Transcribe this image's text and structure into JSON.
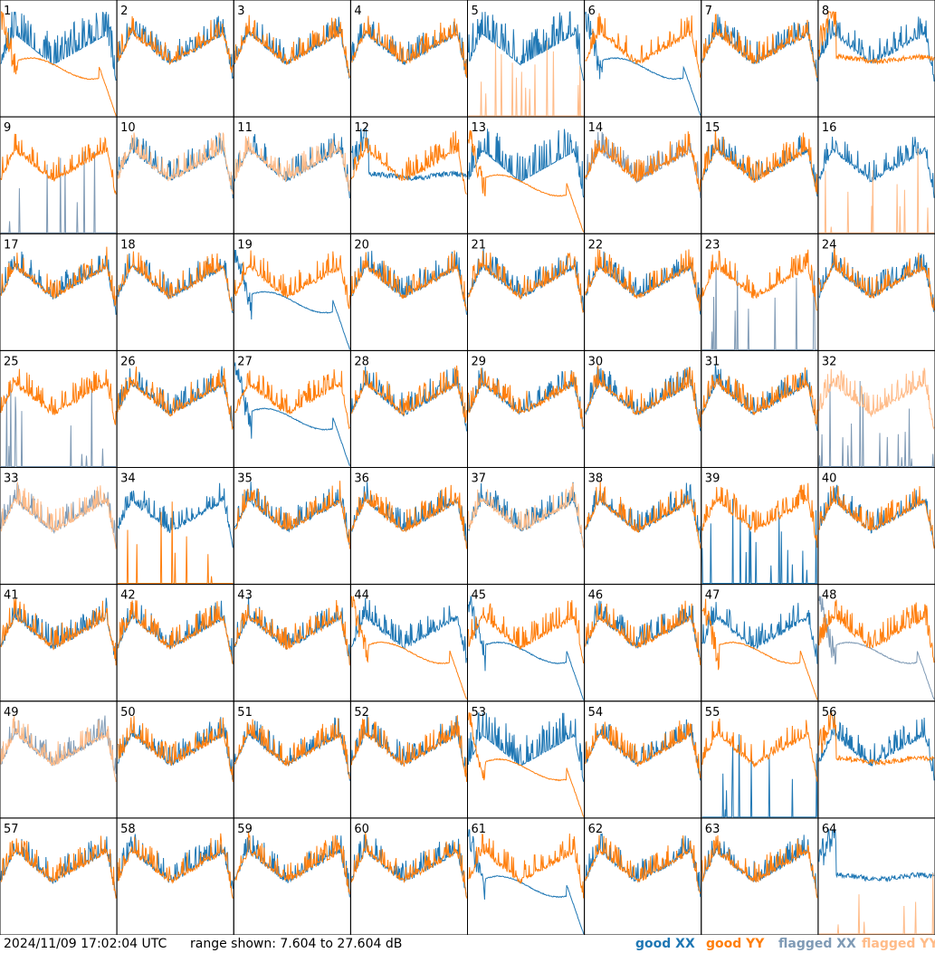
{
  "footer": {
    "timestamp": "2024/11/09 17:02:04 UTC",
    "range": "range shown: 7.604 to 27.604 dB",
    "legend": [
      "good XX",
      "good YY",
      "flagged XX",
      "flagged YY"
    ]
  },
  "colors": {
    "good_xx": "#1f77b4",
    "good_yy": "#ff7f0e",
    "flagged_xx": "#7f9ab5",
    "flagged_yy": "#ffbb88",
    "grid": "#000000"
  },
  "chart_data": {
    "type": "line",
    "layout": "8x8 small multiples",
    "ylim": [
      7.604,
      27.604
    ],
    "ylabel_unit": "dB",
    "series_names": [
      "good XX",
      "good YY",
      "flagged XX",
      "flagged YY"
    ],
    "tiles": [
      {
        "id": "1",
        "xx": "good",
        "yy": "good",
        "xx_shape": "spiky",
        "yy_shape": "dropout"
      },
      {
        "id": "2",
        "xx": "good",
        "yy": "good",
        "xx_shape": "normal",
        "yy_shape": "normal"
      },
      {
        "id": "3",
        "xx": "good",
        "yy": "good",
        "xx_shape": "normal",
        "yy_shape": "normal"
      },
      {
        "id": "4",
        "xx": "good",
        "yy": "good",
        "xx_shape": "normal",
        "yy_shape": "normal"
      },
      {
        "id": "5",
        "xx": "good",
        "yy": "flagged",
        "xx_shape": "spiky",
        "yy_shape": "spikes"
      },
      {
        "id": "6",
        "xx": "good",
        "yy": "good",
        "xx_shape": "dropout",
        "yy_shape": "normal"
      },
      {
        "id": "7",
        "xx": "good",
        "yy": "good",
        "xx_shape": "normal",
        "yy_shape": "normal"
      },
      {
        "id": "8",
        "xx": "good",
        "yy": "good",
        "xx_shape": "normal",
        "yy_shape": "flat"
      },
      {
        "id": "9",
        "xx": "flagged",
        "yy": "good",
        "xx_shape": "spikes",
        "yy_shape": "normal"
      },
      {
        "id": "10",
        "xx": "good",
        "yy": "flagged",
        "xx_shape": "normal",
        "yy_shape": "normal"
      },
      {
        "id": "11",
        "xx": "good",
        "yy": "flagged",
        "xx_shape": "normal",
        "yy_shape": "normal"
      },
      {
        "id": "12",
        "xx": "good",
        "yy": "good",
        "xx_shape": "flat",
        "yy_shape": "normal"
      },
      {
        "id": "13",
        "xx": "good",
        "yy": "good",
        "xx_shape": "spiky",
        "yy_shape": "dropout"
      },
      {
        "id": "14",
        "xx": "flagged",
        "yy": "good",
        "xx_shape": "normal",
        "yy_shape": "normal"
      },
      {
        "id": "15",
        "xx": "good",
        "yy": "good",
        "xx_shape": "normal",
        "yy_shape": "normal"
      },
      {
        "id": "16",
        "xx": "good",
        "yy": "flagged",
        "xx_shape": "normal",
        "yy_shape": "spikes"
      },
      {
        "id": "17",
        "xx": "good",
        "yy": "good",
        "xx_shape": "normal",
        "yy_shape": "normal"
      },
      {
        "id": "18",
        "xx": "good",
        "yy": "good",
        "xx_shape": "normal",
        "yy_shape": "normal"
      },
      {
        "id": "19",
        "xx": "good",
        "yy": "good",
        "xx_shape": "dropout",
        "yy_shape": "normal"
      },
      {
        "id": "20",
        "xx": "good",
        "yy": "good",
        "xx_shape": "normal",
        "yy_shape": "normal"
      },
      {
        "id": "21",
        "xx": "good",
        "yy": "good",
        "xx_shape": "normal",
        "yy_shape": "normal"
      },
      {
        "id": "22",
        "xx": "good",
        "yy": "good",
        "xx_shape": "normal",
        "yy_shape": "normal"
      },
      {
        "id": "23",
        "xx": "flagged",
        "yy": "good",
        "xx_shape": "spikes",
        "yy_shape": "normal"
      },
      {
        "id": "24",
        "xx": "good",
        "yy": "good",
        "xx_shape": "normal",
        "yy_shape": "normal"
      },
      {
        "id": "25",
        "xx": "flagged",
        "yy": "good",
        "xx_shape": "spikes",
        "yy_shape": "normal"
      },
      {
        "id": "26",
        "xx": "good",
        "yy": "good",
        "xx_shape": "normal",
        "yy_shape": "normal"
      },
      {
        "id": "27",
        "xx": "good",
        "yy": "good",
        "xx_shape": "dropout",
        "yy_shape": "normal"
      },
      {
        "id": "28",
        "xx": "good",
        "yy": "good",
        "xx_shape": "normal",
        "yy_shape": "normal"
      },
      {
        "id": "29",
        "xx": "good",
        "yy": "good",
        "xx_shape": "normal",
        "yy_shape": "normal"
      },
      {
        "id": "30",
        "xx": "good",
        "yy": "good",
        "xx_shape": "normal",
        "yy_shape": "normal"
      },
      {
        "id": "31",
        "xx": "good",
        "yy": "good",
        "xx_shape": "normal",
        "yy_shape": "normal"
      },
      {
        "id": "32",
        "xx": "flagged",
        "yy": "flagged",
        "xx_shape": "spikes",
        "yy_shape": "normal"
      },
      {
        "id": "33",
        "xx": "flagged",
        "yy": "flagged",
        "xx_shape": "normal",
        "yy_shape": "normal"
      },
      {
        "id": "34",
        "xx": "good",
        "yy": "good",
        "xx_shape": "normal",
        "yy_shape": "spikes"
      },
      {
        "id": "35",
        "xx": "good",
        "yy": "good",
        "xx_shape": "normal",
        "yy_shape": "normal"
      },
      {
        "id": "36",
        "xx": "good",
        "yy": "good",
        "xx_shape": "normal",
        "yy_shape": "normal"
      },
      {
        "id": "37",
        "xx": "good",
        "yy": "flagged",
        "xx_shape": "normal",
        "yy_shape": "normal"
      },
      {
        "id": "38",
        "xx": "good",
        "yy": "good",
        "xx_shape": "normal",
        "yy_shape": "normal"
      },
      {
        "id": "39",
        "xx": "good",
        "yy": "good",
        "xx_shape": "spikes",
        "yy_shape": "normal"
      },
      {
        "id": "40",
        "xx": "good",
        "yy": "good",
        "xx_shape": "normal",
        "yy_shape": "normal"
      },
      {
        "id": "41",
        "xx": "good",
        "yy": "good",
        "xx_shape": "normal",
        "yy_shape": "normal"
      },
      {
        "id": "42",
        "xx": "good",
        "yy": "good",
        "xx_shape": "normal",
        "yy_shape": "normal"
      },
      {
        "id": "43",
        "xx": "good",
        "yy": "good",
        "xx_shape": "normal",
        "yy_shape": "normal"
      },
      {
        "id": "44",
        "xx": "good",
        "yy": "good",
        "xx_shape": "normal",
        "yy_shape": "dropout"
      },
      {
        "id": "45",
        "xx": "good",
        "yy": "good",
        "xx_shape": "dropout",
        "yy_shape": "normal"
      },
      {
        "id": "46",
        "xx": "good",
        "yy": "good",
        "xx_shape": "normal",
        "yy_shape": "normal"
      },
      {
        "id": "47",
        "xx": "good",
        "yy": "good",
        "xx_shape": "normal",
        "yy_shape": "dropout"
      },
      {
        "id": "48",
        "xx": "flagged",
        "yy": "good",
        "xx_shape": "dropout",
        "yy_shape": "normal"
      },
      {
        "id": "49",
        "xx": "flagged",
        "yy": "flagged",
        "xx_shape": "normal",
        "yy_shape": "normal"
      },
      {
        "id": "50",
        "xx": "good",
        "yy": "good",
        "xx_shape": "normal",
        "yy_shape": "normal"
      },
      {
        "id": "51",
        "xx": "good",
        "yy": "good",
        "xx_shape": "normal",
        "yy_shape": "normal"
      },
      {
        "id": "52",
        "xx": "good",
        "yy": "good",
        "xx_shape": "normal",
        "yy_shape": "normal"
      },
      {
        "id": "53",
        "xx": "good",
        "yy": "good",
        "xx_shape": "spiky",
        "yy_shape": "dropout"
      },
      {
        "id": "54",
        "xx": "good",
        "yy": "good",
        "xx_shape": "normal",
        "yy_shape": "normal"
      },
      {
        "id": "55",
        "xx": "good",
        "yy": "good",
        "xx_shape": "spikes",
        "yy_shape": "normal"
      },
      {
        "id": "56",
        "xx": "good",
        "yy": "good",
        "xx_shape": "normal",
        "yy_shape": "flat"
      },
      {
        "id": "57",
        "xx": "good",
        "yy": "good",
        "xx_shape": "normal",
        "yy_shape": "normal"
      },
      {
        "id": "58",
        "xx": "good",
        "yy": "good",
        "xx_shape": "normal",
        "yy_shape": "normal"
      },
      {
        "id": "59",
        "xx": "good",
        "yy": "good",
        "xx_shape": "normal",
        "yy_shape": "normal"
      },
      {
        "id": "60",
        "xx": "good",
        "yy": "good",
        "xx_shape": "normal",
        "yy_shape": "normal"
      },
      {
        "id": "61",
        "xx": "good",
        "yy": "good",
        "xx_shape": "dropout",
        "yy_shape": "normal"
      },
      {
        "id": "62",
        "xx": "good",
        "yy": "good",
        "xx_shape": "normal",
        "yy_shape": "normal"
      },
      {
        "id": "63",
        "xx": "good",
        "yy": "good",
        "xx_shape": "normal",
        "yy_shape": "normal"
      },
      {
        "id": "64",
        "xx": "good",
        "yy": "flagged",
        "xx_shape": "flat",
        "yy_shape": "spikes"
      }
    ]
  }
}
